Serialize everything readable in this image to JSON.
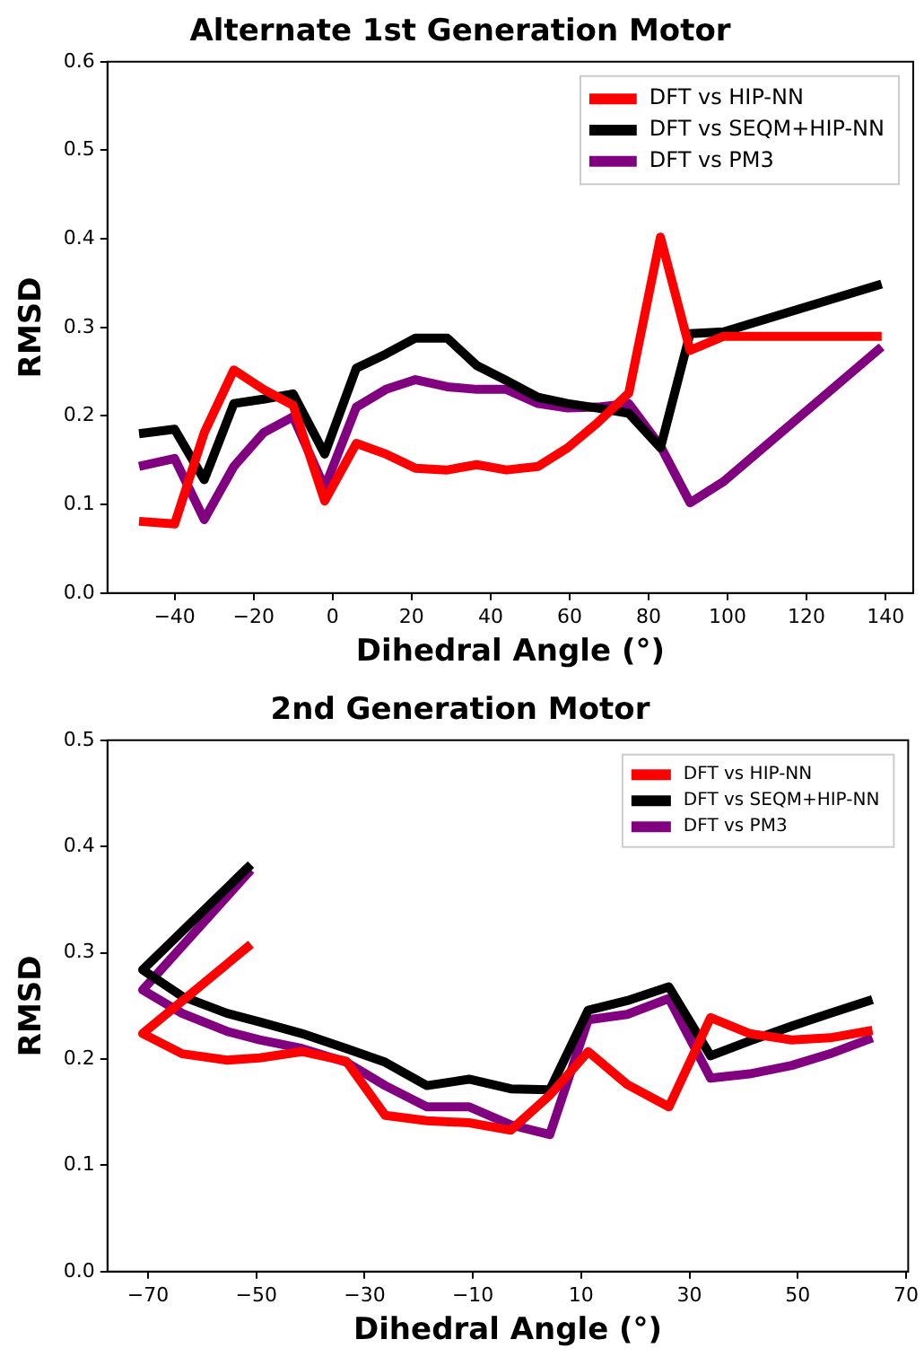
{
  "chart_data": [
    {
      "type": "line",
      "title": "Alternate 1st Generation Motor",
      "xlabel": "Dihedral Angle (°)",
      "ylabel": "RMSD",
      "xlim": [
        -57,
        147
      ],
      "xticks": [
        {
          "value": -40,
          "label": "−40"
        },
        {
          "value": -20,
          "label": "−20"
        },
        0,
        20,
        40,
        60,
        80,
        100,
        120,
        140
      ],
      "ylim": [
        0,
        0.6
      ],
      "yticks": [
        {
          "value": 0,
          "label": "0.0"
        },
        0.1,
        0.2,
        0.3,
        0.4,
        0.5,
        0.6
      ],
      "grid": false,
      "legend": "top right",
      "marker": "none",
      "line_style": "solid",
      "x": [
        -49,
        -40,
        -32.5,
        -25,
        -17.5,
        -10,
        -2,
        6,
        13.5,
        21,
        29,
        36.5,
        44,
        52,
        59.5,
        67,
        75,
        83,
        90.5,
        99,
        139
      ],
      "series": [
        {
          "name": "DFT vs HIP-NN",
          "color": "#ff0000",
          "values": [
            0.081,
            0.078,
            0.181,
            0.252,
            0.23,
            0.212,
            0.104,
            0.169,
            0.157,
            0.141,
            0.139,
            0.145,
            0.139,
            0.143,
            0.164,
            0.192,
            0.226,
            0.402,
            0.274,
            0.29,
            0.29
          ]
        },
        {
          "name": "DFT vs SEQM+HIP-NN",
          "color": "#000000",
          "values": [
            0.18,
            0.185,
            0.128,
            0.214,
            0.219,
            0.225,
            0.157,
            0.254,
            0.27,
            0.288,
            0.288,
            0.257,
            0.24,
            0.221,
            0.214,
            0.209,
            0.203,
            0.164,
            0.293,
            0.295,
            0.349
          ]
        },
        {
          "name": "DFT vs PM3",
          "color": "#800080",
          "values": [
            0.143,
            0.152,
            0.083,
            0.143,
            0.181,
            0.199,
            0.119,
            0.21,
            0.23,
            0.241,
            0.233,
            0.23,
            0.23,
            0.214,
            0.209,
            0.21,
            0.214,
            0.166,
            0.102,
            0.126,
            0.278
          ]
        }
      ]
    },
    {
      "type": "line",
      "title": "2nd Generation Motor",
      "xlabel": "Dihedral Angle (°)",
      "ylabel": "RMSD",
      "xlim": [
        -77.5,
        70.4
      ],
      "xticks": [
        {
          "value": -70,
          "label": "−70"
        },
        {
          "value": -50,
          "label": "−50"
        },
        {
          "value": -30,
          "label": "−30"
        },
        {
          "value": -10,
          "label": "−10"
        },
        10,
        30,
        50,
        70
      ],
      "ylim": [
        0,
        0.5
      ],
      "yticks": [
        {
          "value": 0,
          "label": "0.0"
        },
        0.1,
        0.2,
        0.3,
        0.4,
        0.5
      ],
      "grid": false,
      "legend": "top right",
      "marker": "none",
      "line_style": "solid",
      "x": [
        -51,
        -71,
        -63.7,
        -55.4,
        -49.4,
        -41.6,
        -33.4,
        -26.2,
        -18.5,
        -10.7,
        -3,
        4.2,
        11.3,
        18.5,
        26.2,
        33.9,
        41.1,
        48.9,
        56,
        63.8
      ],
      "series": [
        {
          "name": "DFT vs HIP-NN",
          "color": "#ff0000",
          "values": [
            0.308,
            0.224,
            0.205,
            0.199,
            0.201,
            0.207,
            0.198,
            0.147,
            0.142,
            0.14,
            0.133,
            0.166,
            0.207,
            0.176,
            0.155,
            0.239,
            0.224,
            0.218,
            0.22,
            0.227
          ]
        },
        {
          "name": "DFT vs SEQM+HIP-NN",
          "color": "#000000",
          "values": [
            0.383,
            0.284,
            0.259,
            0.243,
            0.235,
            0.224,
            0.21,
            0.197,
            0.175,
            0.181,
            0.172,
            0.171,
            0.246,
            0.255,
            0.268,
            0.203,
            0.217,
            0.231,
            0.243,
            0.256
          ]
        },
        {
          "name": "DFT vs PM3",
          "color": "#800080",
          "values": [
            0.378,
            0.265,
            0.243,
            0.226,
            0.218,
            0.21,
            0.197,
            0.175,
            0.155,
            0.155,
            0.138,
            0.129,
            0.237,
            0.242,
            0.257,
            0.182,
            0.186,
            0.194,
            0.205,
            0.22
          ]
        }
      ]
    }
  ]
}
